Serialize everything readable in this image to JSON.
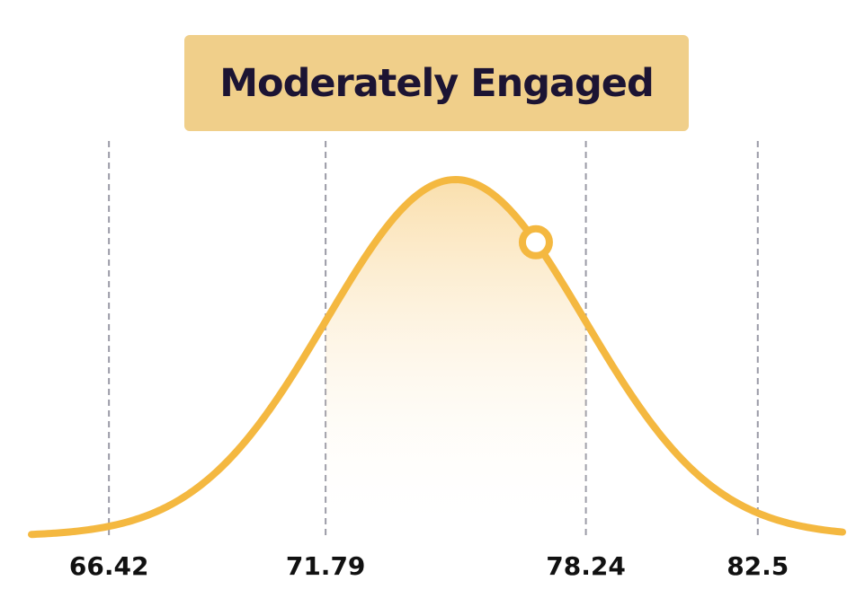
{
  "chart_data": {
    "type": "area",
    "title": "Moderately Engaged",
    "distribution": "normal",
    "mean": 75.01,
    "sd": 3.2,
    "x_range": [
      64.5,
      84.6
    ],
    "highlight_range": [
      71.79,
      78.24
    ],
    "marker_x": 77.0,
    "reference_lines": [
      66.42,
      71.79,
      78.24,
      82.5
    ],
    "tick_labels": [
      "66.42",
      "71.79",
      "78.24",
      "82.5"
    ],
    "grid": false,
    "legend": "none"
  },
  "colors": {
    "curve": "#f4b840",
    "fill_top": "#f6c56a",
    "badge": "#f0cf8a",
    "title_text": "#1c1433",
    "reference_line": "#9a9aa6",
    "marker_fill": "#ffffff"
  }
}
